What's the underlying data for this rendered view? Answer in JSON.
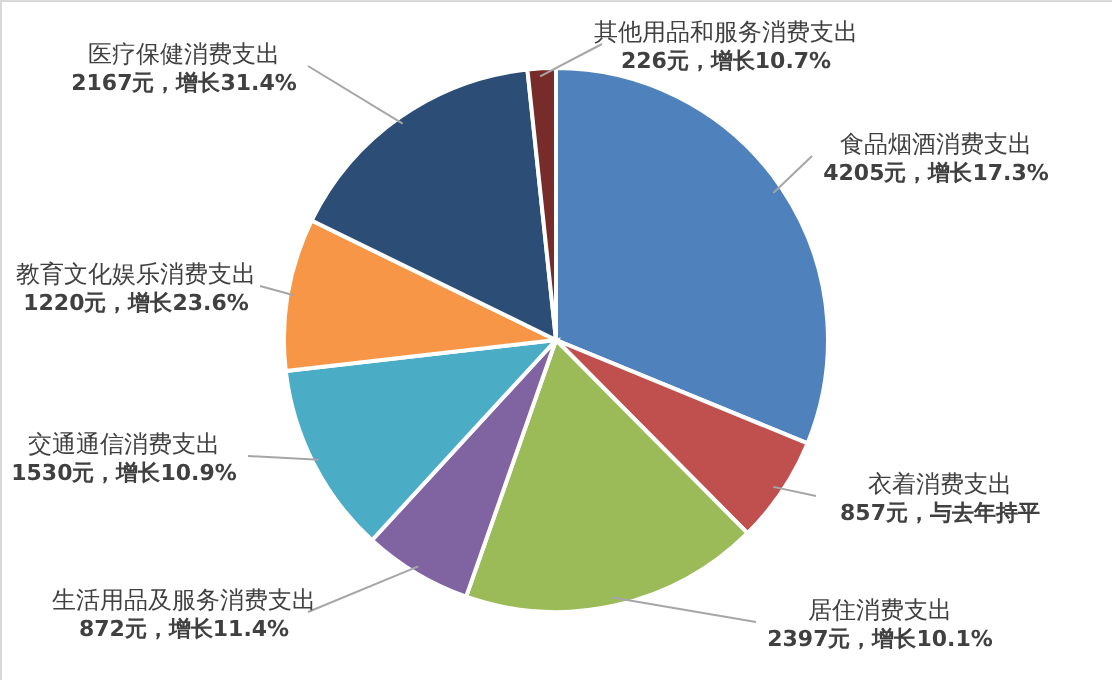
{
  "chart_data": {
    "type": "pie",
    "categories": [
      "食品烟酒消费支出",
      "衣着消费支出",
      "居住消费支出",
      "生活用品及服务消费支出",
      "交通通信消费支出",
      "教育文化娱乐消费支出",
      "医疗保健消费支出",
      "其他用品和服务消费支出"
    ],
    "values": [
      4205,
      857,
      2397,
      872,
      1530,
      1220,
      2167,
      226
    ],
    "colors": [
      "#4f81bd",
      "#c0504d",
      "#9bbb59",
      "#8064a2",
      "#4bacc6",
      "#f79646",
      "#2c4d75",
      "#772c2a"
    ],
    "value_labels": [
      "4205元，增长17.3%",
      "857元，与去年持平",
      "2397元，增长10.1%",
      "872元，增长11.4%",
      "1530元，增长10.9%",
      "1220元，增长23.6%",
      "2167元，增长31.4%",
      "226元，增长10.7%"
    ]
  }
}
